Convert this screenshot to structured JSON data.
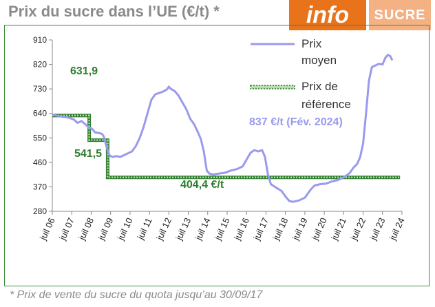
{
  "title": "Prix du sucre dans l’UE (€/t)  *",
  "logo": {
    "info": "info",
    "sucre": "SUCRE"
  },
  "footnote": "* Prix de vente du sucre du quota jusqu’au 30/09/17",
  "colors": {
    "avg_price": "#9999ee",
    "ref_price": "#2e7d2e",
    "frame": "#3a8a3a",
    "title": "#8a8a8a",
    "logo_orange": "#e8731a",
    "logo_peach": "#f4b183"
  },
  "chart_data": {
    "type": "line",
    "title": "",
    "xlabel": "",
    "ylabel": "",
    "ylim": [
      280,
      910
    ],
    "yticks": [
      280,
      370,
      460,
      550,
      640,
      730,
      820,
      910
    ],
    "xlim": [
      2006.5,
      2024.5
    ],
    "xticks": [
      {
        "x": 2006.5,
        "label": "juil 06"
      },
      {
        "x": 2007.5,
        "label": "juil 07"
      },
      {
        "x": 2008.5,
        "label": "juil 08"
      },
      {
        "x": 2009.5,
        "label": "juil 09"
      },
      {
        "x": 2010.5,
        "label": "juil 10"
      },
      {
        "x": 2011.5,
        "label": "juil 11"
      },
      {
        "x": 2012.5,
        "label": "juil 12"
      },
      {
        "x": 2013.5,
        "label": "juil 13"
      },
      {
        "x": 2014.5,
        "label": "juil 14"
      },
      {
        "x": 2015.5,
        "label": "juil 15"
      },
      {
        "x": 2016.5,
        "label": "juil 16"
      },
      {
        "x": 2017.5,
        "label": "juil 17"
      },
      {
        "x": 2018.5,
        "label": "juil 18"
      },
      {
        "x": 2019.5,
        "label": "juil 19"
      },
      {
        "x": 2020.5,
        "label": "juil 20"
      },
      {
        "x": 2021.5,
        "label": "juil 21"
      },
      {
        "x": 2022.5,
        "label": "juil 22"
      },
      {
        "x": 2023.5,
        "label": "juil 23"
      },
      {
        "x": 2024.5,
        "label": "juil 24"
      }
    ],
    "series": [
      {
        "name": "Prix moyen",
        "points": [
          [
            2006.5,
            635
          ],
          [
            2007.0,
            628
          ],
          [
            2007.3,
            625
          ],
          [
            2007.6,
            618
          ],
          [
            2007.8,
            605
          ],
          [
            2008.0,
            612
          ],
          [
            2008.2,
            600
          ],
          [
            2008.35,
            590
          ],
          [
            2008.55,
            583
          ],
          [
            2008.7,
            570
          ],
          [
            2008.9,
            568
          ],
          [
            2009.05,
            565
          ],
          [
            2009.15,
            555
          ],
          [
            2009.3,
            515
          ],
          [
            2009.45,
            485
          ],
          [
            2009.6,
            480
          ],
          [
            2009.8,
            483
          ],
          [
            2010.0,
            480
          ],
          [
            2010.3,
            490
          ],
          [
            2010.6,
            500
          ],
          [
            2010.8,
            520
          ],
          [
            2011.0,
            550
          ],
          [
            2011.2,
            590
          ],
          [
            2011.4,
            640
          ],
          [
            2011.6,
            690
          ],
          [
            2011.8,
            710
          ],
          [
            2012.0,
            715
          ],
          [
            2012.2,
            720
          ],
          [
            2012.4,
            728
          ],
          [
            2012.5,
            738
          ],
          [
            2012.6,
            730
          ],
          [
            2012.8,
            722
          ],
          [
            2013.0,
            705
          ],
          [
            2013.2,
            680
          ],
          [
            2013.4,
            655
          ],
          [
            2013.6,
            620
          ],
          [
            2013.8,
            600
          ],
          [
            2014.0,
            570
          ],
          [
            2014.15,
            545
          ],
          [
            2014.3,
            500
          ],
          [
            2014.45,
            430
          ],
          [
            2014.6,
            418
          ],
          [
            2014.8,
            415
          ],
          [
            2015.0,
            418
          ],
          [
            2015.2,
            420
          ],
          [
            2015.4,
            422
          ],
          [
            2015.7,
            430
          ],
          [
            2016.0,
            435
          ],
          [
            2016.3,
            445
          ],
          [
            2016.5,
            470
          ],
          [
            2016.7,
            495
          ],
          [
            2016.9,
            505
          ],
          [
            2017.1,
            500
          ],
          [
            2017.3,
            505
          ],
          [
            2017.45,
            480
          ],
          [
            2017.6,
            415
          ],
          [
            2017.75,
            380
          ],
          [
            2018.0,
            368
          ],
          [
            2018.3,
            355
          ],
          [
            2018.5,
            335
          ],
          [
            2018.7,
            318
          ],
          [
            2018.9,
            315
          ],
          [
            2019.2,
            320
          ],
          [
            2019.5,
            330
          ],
          [
            2019.8,
            360
          ],
          [
            2020.0,
            375
          ],
          [
            2020.3,
            380
          ],
          [
            2020.6,
            382
          ],
          [
            2020.9,
            390
          ],
          [
            2021.2,
            395
          ],
          [
            2021.5,
            405
          ],
          [
            2021.8,
            420
          ],
          [
            2022.0,
            440
          ],
          [
            2022.2,
            455
          ],
          [
            2022.35,
            480
          ],
          [
            2022.5,
            530
          ],
          [
            2022.65,
            640
          ],
          [
            2022.8,
            760
          ],
          [
            2022.95,
            810
          ],
          [
            2023.1,
            815
          ],
          [
            2023.3,
            822
          ],
          [
            2023.5,
            820
          ],
          [
            2023.65,
            845
          ],
          [
            2023.78,
            855
          ],
          [
            2023.9,
            850
          ],
          [
            2024.0,
            835
          ]
        ]
      },
      {
        "name": "Prix de référence",
        "points": [
          [
            2006.5,
            631.9
          ],
          [
            2008.4,
            631.9
          ],
          [
            2008.4,
            541.5
          ],
          [
            2009.35,
            541.5
          ],
          [
            2009.35,
            404.4
          ],
          [
            2024.4,
            404.4
          ]
        ]
      }
    ],
    "legend": {
      "position": "top-right",
      "avg_label_1": "Prix",
      "avg_label_2": "moyen",
      "ref_label_1": "Prix de",
      "ref_label_2": "référence"
    },
    "annotations": {
      "ref_631": "631,9",
      "ref_541": "541,5",
      "ref_404": "404,4 €/t",
      "latest": "837 €/t (Fév. 2024)"
    }
  }
}
